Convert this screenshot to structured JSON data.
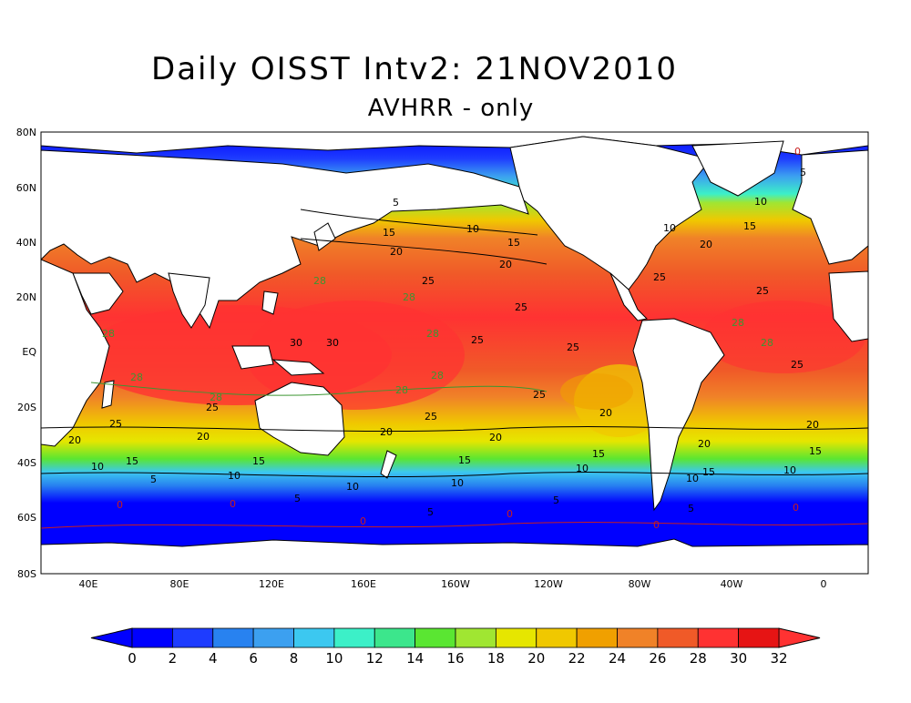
{
  "title": "Daily OISST Intv2: 21NOV2010",
  "subtitle": "AVHRR - only",
  "lat_labels": [
    "80N",
    "60N",
    "40N",
    "20N",
    "EQ",
    "20S",
    "40S",
    "60S",
    "80S"
  ],
  "lon_labels": [
    "40E",
    "80E",
    "120E",
    "160E",
    "160W",
    "120W",
    "80W",
    "40W",
    "0"
  ],
  "colorbar": {
    "ticks": [
      "0",
      "2",
      "4",
      "6",
      "8",
      "10",
      "12",
      "14",
      "16",
      "18",
      "20",
      "22",
      "24",
      "26",
      "28",
      "30",
      "32"
    ],
    "colors": [
      "#0000ff",
      "#1e3cff",
      "#2882f0",
      "#3ca0f0",
      "#3cc8f0",
      "#3cf0c8",
      "#3ce68c",
      "#5ae632",
      "#a0e632",
      "#e6e600",
      "#f0c800",
      "#f0a000",
      "#f08228",
      "#f05a28",
      "#ff3232",
      "#e61414"
    ],
    "under_color": "#0000ff",
    "over_color": "#ff3232"
  },
  "contour_levels": [
    "0",
    "5",
    "10",
    "15",
    "20",
    "25",
    "28",
    "30"
  ]
}
